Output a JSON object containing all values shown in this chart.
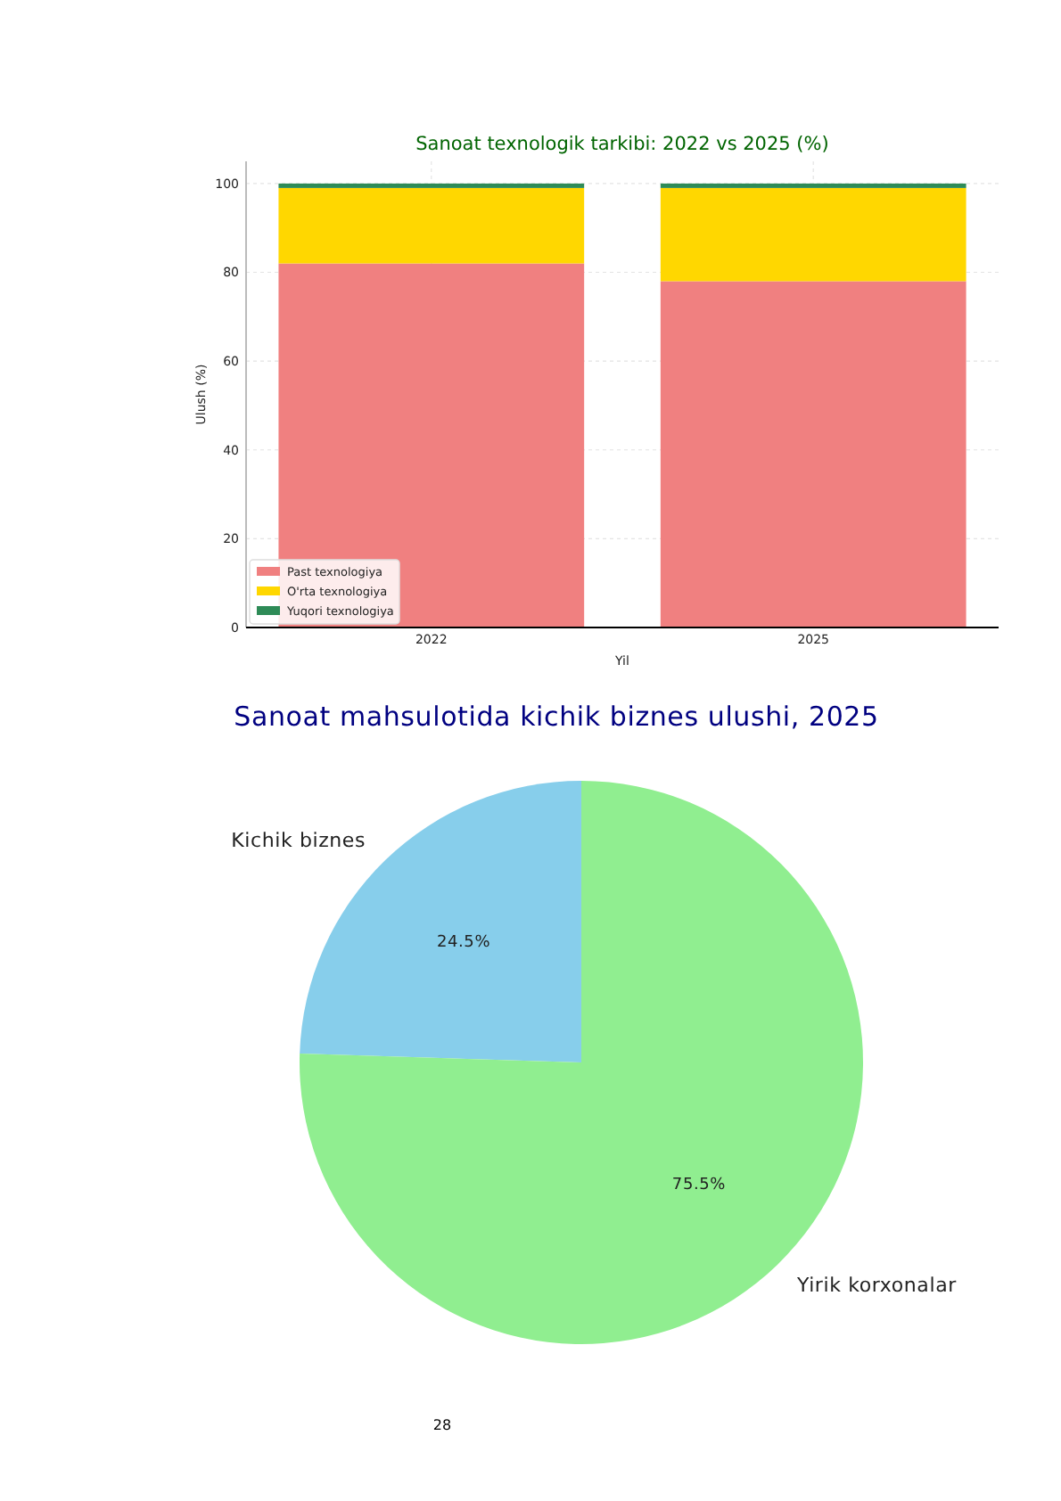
{
  "chart_data": [
    {
      "type": "bar",
      "title": "Sanoat texnologik tarkibi: 2022 vs 2025 (%)",
      "xlabel": "Yil",
      "ylabel": "Ulush (%)",
      "categories": [
        "2022",
        "2025"
      ],
      "stacked": true,
      "series": [
        {
          "name": "Past texnologiya",
          "color": "#f08080",
          "values": [
            82,
            78
          ]
        },
        {
          "name": "O'rta texnologiya",
          "color": "#ffd700",
          "values": [
            17,
            21
          ]
        },
        {
          "name": "Yuqori texnologiya",
          "color": "#2e8b57",
          "values": [
            1,
            1
          ]
        }
      ],
      "ylim": [
        0,
        105
      ],
      "yticks": [
        0,
        20,
        40,
        60,
        80,
        100
      ],
      "grid": true,
      "legend": "bottom left"
    },
    {
      "type": "pie",
      "title": "Sanoat mahsulotida kichik biznes ulushi, 2025",
      "categories": [
        "Kichik biznes",
        "Yirik korxonalar"
      ],
      "values": [
        24.5,
        75.5
      ],
      "colors": [
        "#87ceeb",
        "#90ee90"
      ],
      "value_labels": [
        "24.5%",
        "75.5%"
      ],
      "annotations": [
        "28"
      ]
    }
  ]
}
